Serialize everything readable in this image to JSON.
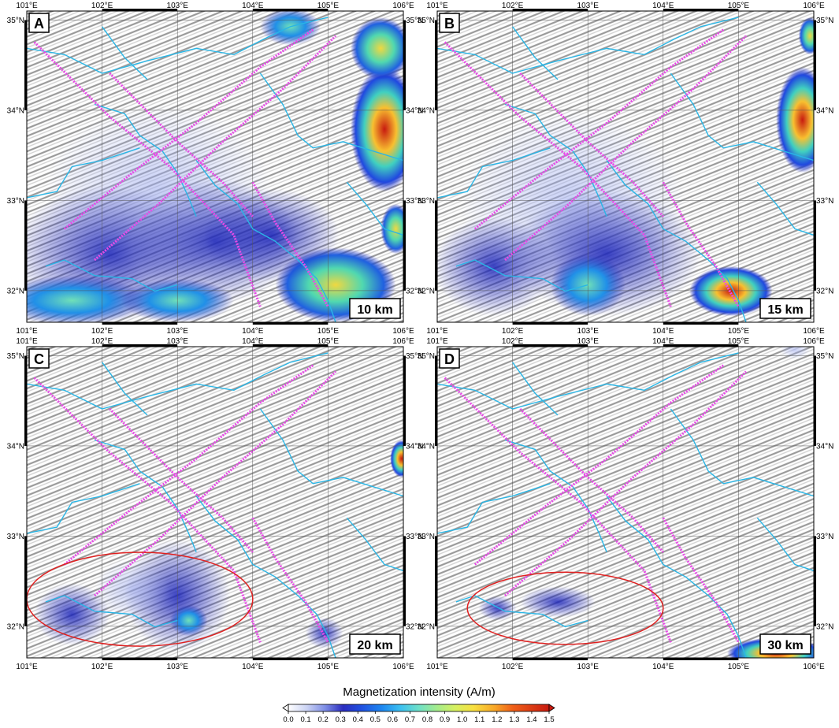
{
  "figure": {
    "panels": [
      {
        "letter": "A",
        "depth": "10 km"
      },
      {
        "letter": "B",
        "depth": "15 km"
      },
      {
        "letter": "C",
        "depth": "20 km"
      },
      {
        "letter": "D",
        "depth": "30 km"
      }
    ],
    "lon_ticks": [
      "101°E",
      "102°E",
      "103°E",
      "104°E",
      "105°E",
      "106°E"
    ],
    "lat_ticks": [
      "35°N",
      "34°N",
      "33°N",
      "32°N"
    ],
    "lon_range": [
      101,
      106
    ],
    "lat_range": [
      31.65,
      35.1
    ],
    "layer_colors": {
      "rivers": "#29b6e6",
      "profiles": "#e84be8",
      "highlight_ellipse": "#e02020"
    },
    "colorbar": {
      "title": "Magnetization intensity (A/m)",
      "min": 0.0,
      "max": 1.5,
      "labels": [
        "0.0",
        "0.1",
        "0.2",
        "0.3",
        "0.4",
        "0.5",
        "0.6",
        "0.7",
        "0.8",
        "0.9",
        "1.0",
        "1.1",
        "1.2",
        "1.3",
        "1.4",
        "1.5"
      ],
      "palette": [
        "#ffffff",
        "#ccd4f4",
        "#7f8fe6",
        "#2b2dbf",
        "#2050e0",
        "#1e88f0",
        "#3cc0f0",
        "#6ee0c8",
        "#a4ec8c",
        "#d6f060",
        "#f8e040",
        "#f8a828",
        "#f06018",
        "#c81a10"
      ]
    }
  }
}
